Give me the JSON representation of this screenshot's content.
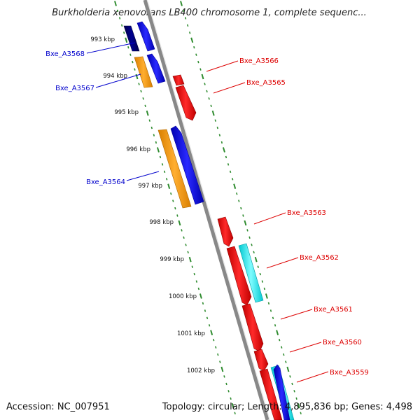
{
  "title": "Burkholderia xenovorans LB400 chromosome 1, complete sequenc...",
  "footer": {
    "accession": "Accession: NC_007951",
    "summary": "Topology: circular; Length: 4,895,836 bp; Genes: 4,498"
  },
  "scale_labels": [
    "993 kbp",
    "994 kbp",
    "995 kbp",
    "996 kbp",
    "997 kbp",
    "998 kbp",
    "999 kbp",
    "1000 kbp",
    "1001 kbp",
    "1002 kbp"
  ],
  "gene_labels": [
    "Bxe_A3568",
    "Bxe_A3567",
    "Bxe_A3564",
    "Bxe_A3566",
    "Bxe_A3565",
    "Bxe_A3563",
    "Bxe_A3562",
    "Bxe_A3561",
    "Bxe_A3560",
    "Bxe_A3559"
  ],
  "colors": {
    "backbone": "#888888",
    "tick": "#2e8b2e",
    "forward_gene": "#0000ff",
    "reverse_gene": "#ff0000",
    "forward_label": "#0000cc",
    "reverse_label": "#dd0000",
    "orange": "#ff9900",
    "navy": "#000080",
    "cyan": "#00ffff"
  }
}
